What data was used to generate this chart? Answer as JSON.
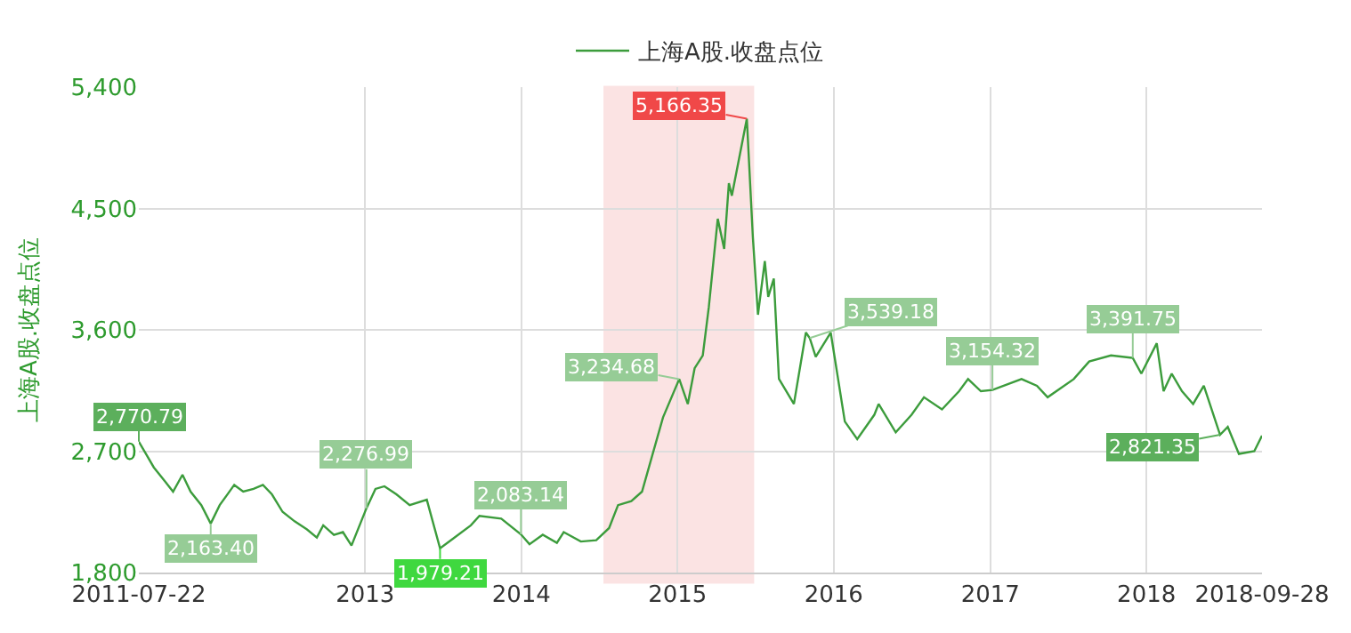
{
  "chart_data": {
    "type": "line",
    "ylabel": "上海A股.收盘点位",
    "legend": "top",
    "x": [
      "2011-07-22",
      "2011-08-26",
      "2011-09-20",
      "2011-10-10",
      "2011-11-01",
      "2011-11-20",
      "2011-12-15",
      "2012-01-06",
      "2012-01-27",
      "2012-03-01",
      "2012-03-22",
      "2012-04-15",
      "2012-05-07",
      "2012-05-28",
      "2012-06-22",
      "2012-07-20",
      "2012-08-18",
      "2012-09-10",
      "2012-09-25",
      "2012-10-20",
      "2012-11-10",
      "2012-11-30",
      "2013-01-04",
      "2013-01-25",
      "2013-02-15",
      "2013-03-15",
      "2013-04-15",
      "2013-05-25",
      "2013-06-25",
      "2013-07-25",
      "2013-09-05",
      "2013-09-25",
      "2013-11-15",
      "2013-12-31",
      "2014-01-20",
      "2014-02-20",
      "2014-03-25",
      "2014-04-10",
      "2014-05-20",
      "2014-06-25",
      "2014-07-25",
      "2014-08-15",
      "2014-09-15",
      "2014-10-10",
      "2014-11-28",
      "2015-01-05",
      "2015-01-25",
      "2015-02-10",
      "2015-03-01",
      "2015-03-15",
      "2015-04-05",
      "2015-04-20",
      "2015-05-01",
      "2015-05-08",
      "2015-06-12",
      "2015-06-26",
      "2015-07-08",
      "2015-07-24",
      "2015-08-01",
      "2015-08-14",
      "2015-08-26",
      "2015-09-30",
      "2015-10-28",
      "2015-11-06",
      "2015-11-20",
      "2015-12-25",
      "2016-01-27",
      "2016-02-25",
      "2016-04-05",
      "2016-04-15",
      "2016-05-25",
      "2016-07-01",
      "2016-07-30",
      "2016-09-10",
      "2016-10-20",
      "2016-11-10",
      "2016-12-10",
      "2017-01-06",
      "2017-03-15",
      "2017-04-20",
      "2017-05-15",
      "2017-07-15",
      "2017-08-20",
      "2017-10-10",
      "2017-11-30",
      "2017-12-20",
      "2018-01-25",
      "2018-02-10",
      "2018-03-01",
      "2018-03-25",
      "2018-04-20",
      "2018-05-15",
      "2018-06-22",
      "2018-07-10",
      "2018-08-05",
      "2018-09-10",
      "2018-09-28"
    ],
    "series": [
      {
        "name": "上海A股.收盘点位",
        "color": "#3c9c3c",
        "values": [
          2770.79,
          2580,
          2480,
          2400,
          2525,
          2400,
          2300,
          2163.4,
          2300,
          2450,
          2400,
          2420,
          2450,
          2380,
          2250,
          2180,
          2120,
          2060,
          2150,
          2080,
          2100,
          2000,
          2276.99,
          2420,
          2440,
          2380,
          2300,
          2340,
          1979.21,
          2050,
          2150,
          2220,
          2200,
          2083.14,
          2010,
          2080,
          2020,
          2100,
          2030,
          2040,
          2130,
          2300,
          2330,
          2400,
          2950,
          3234.68,
          3050,
          3315,
          3410,
          3765,
          4424,
          4200,
          4687,
          4595,
          5166.35,
          4290,
          3712,
          4110,
          3845,
          3980,
          3237,
          3050,
          3580,
          3539.18,
          3400,
          3580,
          2920,
          2790,
          2970,
          3050,
          2840,
          2970,
          3100,
          3010,
          3145,
          3235,
          3145,
          3154.32,
          3235,
          3185,
          3100,
          3235,
          3365,
          3410,
          3391.75,
          3275,
          3500,
          3145,
          3275,
          3145,
          3050,
          3185,
          2821.35,
          2880,
          2680,
          2700,
          2815
        ]
      }
    ],
    "xlim": [
      "2011-07-22",
      "2018-09-28"
    ],
    "xticks": [
      {
        "value": "2011-07-22",
        "label": "2011-07-22"
      },
      {
        "value": "2013-01-01",
        "label": "2013"
      },
      {
        "value": "2014-01-01",
        "label": "2014"
      },
      {
        "value": "2015-01-01",
        "label": "2015"
      },
      {
        "value": "2016-01-01",
        "label": "2016"
      },
      {
        "value": "2017-01-01",
        "label": "2017"
      },
      {
        "value": "2018-01-01",
        "label": "2018"
      },
      {
        "value": "2018-09-28",
        "label": "2018-09-28"
      }
    ],
    "ylim": [
      1800,
      5400
    ],
    "yticks": [
      {
        "value": 1800,
        "label": "1,800"
      },
      {
        "value": 2700,
        "label": "2,700"
      },
      {
        "value": 3600,
        "label": "3,600"
      },
      {
        "value": 4500,
        "label": "4,500"
      },
      {
        "value": 5400,
        "label": "5,400"
      }
    ],
    "grid": true,
    "marker": "none",
    "line_style": "solid",
    "bands": [
      {
        "axis": "x",
        "from": "2014-07-15",
        "to": "2015-06-26",
        "color": "#e02020"
      }
    ],
    "annotations": [
      {
        "text": "2,770.79",
        "x": "2011-07-22",
        "y": 2770.79
      },
      {
        "text": "2,163.40",
        "x": "2012-01-06",
        "y": 2163.4
      },
      {
        "text": "2,276.99",
        "x": "2013-01-04",
        "y": 2276.99
      },
      {
        "text": "1,979.21",
        "x": "2013-06-25",
        "y": 1979.21
      },
      {
        "text": "2,083.14",
        "x": "2013-12-31",
        "y": 2083.14
      },
      {
        "text": "3,234.68",
        "x": "2015-01-05",
        "y": 3234.68
      },
      {
        "text": "5,166.35",
        "x": "2015-06-12",
        "y": 5166.35
      },
      {
        "text": "3,539.18",
        "x": "2015-11-06",
        "y": 3539.18
      },
      {
        "text": "3,154.32",
        "x": "2017-01-06",
        "y": 3154.32
      },
      {
        "text": "3,391.75",
        "x": "2017-11-30",
        "y": 3391.75
      },
      {
        "text": "2,821.35",
        "x": "2018-06-22",
        "y": 2821.35
      }
    ]
  }
}
